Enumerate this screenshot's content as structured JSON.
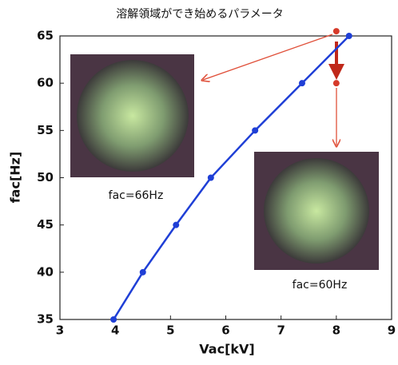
{
  "chart_data": {
    "type": "line",
    "title": "溶解領域ができ始めるパラメータ",
    "x_label": "Vac[kV]",
    "y_label": "fac[Hz]",
    "series": [
      {
        "color": "#1f3fd6",
        "x": [
          3.97,
          4.5,
          5.1,
          5.73,
          6.53,
          7.38,
          8.23
        ],
        "values": [
          35,
          40,
          45,
          50,
          55,
          60,
          65
        ]
      }
    ],
    "highlight_points": {
      "color": "#d63a2a",
      "x": [
        8,
        8
      ],
      "values": [
        65.5,
        60
      ]
    },
    "annotations": [
      "fac=66Hz",
      "fac=60Hz"
    ],
    "xlim": [
      3,
      9
    ],
    "xticks": [
      3,
      4,
      5,
      6,
      7,
      8,
      9
    ],
    "ylim": [
      35,
      65
    ],
    "yticks": [
      35,
      40,
      45,
      50,
      55,
      60,
      65
    ],
    "grid": false
  }
}
